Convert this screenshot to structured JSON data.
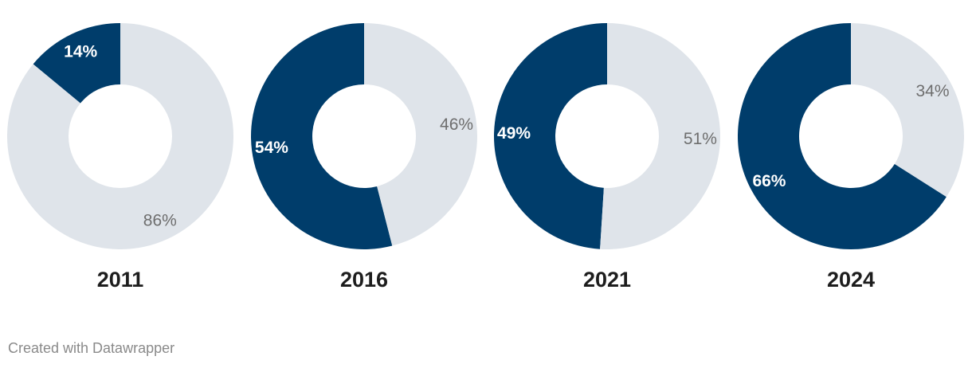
{
  "chart_data": {
    "type": "pie",
    "variant": "donut",
    "colors": {
      "highlight": "#003d6b",
      "rest": "#dfe4ea"
    },
    "charts": [
      {
        "year": "2011",
        "values": [
          14,
          86
        ],
        "labels": [
          "14%",
          "86%"
        ]
      },
      {
        "year": "2016",
        "values": [
          54,
          46
        ],
        "labels": [
          "54%",
          "46%"
        ]
      },
      {
        "year": "2021",
        "values": [
          49,
          51
        ],
        "labels": [
          "49%",
          "51%"
        ]
      },
      {
        "year": "2024",
        "values": [
          66,
          34
        ],
        "labels": [
          "66%",
          "34%"
        ]
      }
    ]
  },
  "footer": {
    "credit": "Created with Datawrapper"
  }
}
